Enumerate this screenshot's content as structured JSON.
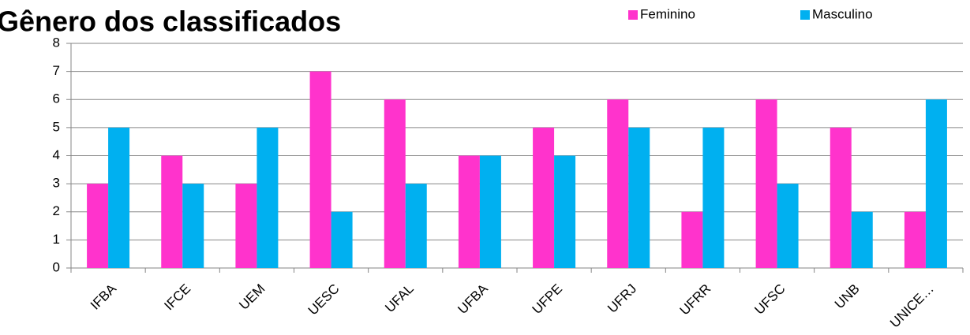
{
  "chart_data": {
    "type": "bar",
    "title": "Gênero dos classificados",
    "categories": [
      "IFBA",
      "IFCE",
      "UEM",
      "UESC",
      "UFAL",
      "UFBA",
      "UFPE",
      "UFRJ",
      "UFRR",
      "UFSC",
      "UNB",
      "UNICE…"
    ],
    "series": [
      {
        "name": "Feminino",
        "color": "#ff33cc",
        "values": [
          3,
          4,
          3,
          7,
          6,
          4,
          5,
          6,
          2,
          6,
          5,
          2
        ]
      },
      {
        "name": "Masculino",
        "color": "#00b0f0",
        "values": [
          5,
          3,
          5,
          2,
          3,
          4,
          4,
          5,
          5,
          3,
          2,
          6
        ]
      }
    ],
    "ylim": [
      0,
      8
    ],
    "yticks": [
      0,
      1,
      2,
      3,
      4,
      5,
      6,
      7,
      8
    ],
    "grid": true,
    "legend": "top-right"
  }
}
